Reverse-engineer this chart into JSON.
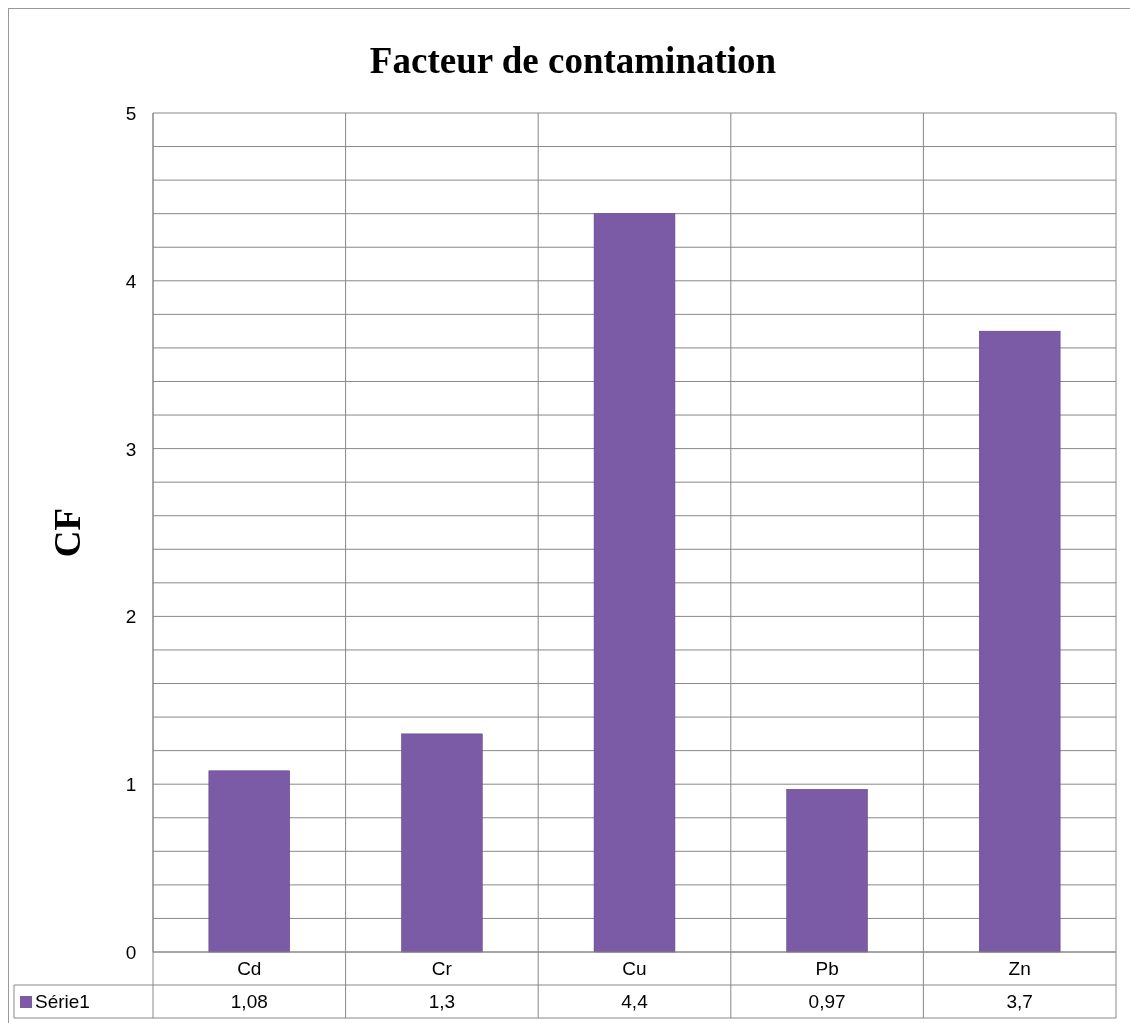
{
  "chart_data": {
    "type": "bar",
    "title": "Facteur de contamination",
    "ylabel": "CF",
    "categories": [
      "Cd",
      "Cr",
      "Cu",
      "Pb",
      "Zn"
    ],
    "series": [
      {
        "name": "Série1",
        "color": "#7b5aa6",
        "values": [
          1.08,
          1.3,
          4.4,
          0.97,
          3.7
        ],
        "value_labels": [
          "1,08",
          "1,3",
          "4,4",
          "0,97",
          "3,7"
        ]
      }
    ],
    "ylim": [
      0,
      5
    ],
    "yticks": [
      0,
      {
        "value": 0.2,
        "label": null
      },
      {
        "value": 0.4,
        "label": null
      },
      {
        "value": 0.6,
        "label": null
      },
      {
        "value": 0.8,
        "label": null
      },
      1,
      {
        "value": 1.2,
        "label": null
      },
      {
        "value": 1.4,
        "label": null
      },
      {
        "value": 1.6,
        "label": null
      },
      {
        "value": 1.8,
        "label": null
      },
      2,
      {
        "value": 2.2,
        "label": null
      },
      {
        "value": 2.4,
        "label": null
      },
      {
        "value": 2.6,
        "label": null
      },
      {
        "value": 2.8,
        "label": null
      },
      3,
      {
        "value": 3.2,
        "label": null
      },
      {
        "value": 3.4,
        "label": null
      },
      {
        "value": 3.6,
        "label": null
      },
      {
        "value": 3.8,
        "label": null
      },
      4,
      {
        "value": 4.2,
        "label": null
      },
      {
        "value": 4.4,
        "label": null
      },
      {
        "value": 4.6,
        "label": null
      },
      {
        "value": 4.8,
        "label": null
      },
      5
    ],
    "grid": true,
    "legend": "bottom"
  }
}
